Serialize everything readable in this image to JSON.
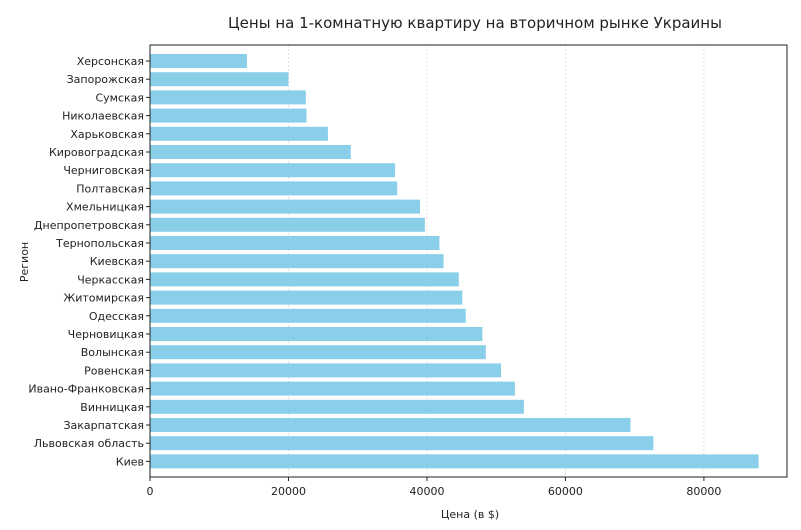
{
  "chart_data": {
    "type": "bar",
    "orientation": "horizontal",
    "title": "Цены на 1-комнатную квартиру на вторичном рынке Украины",
    "xlabel": "Цена (в $)",
    "ylabel": "Регион",
    "xlim": [
      0,
      92000
    ],
    "xticks": [
      0,
      20000,
      40000,
      60000,
      80000
    ],
    "grid": true,
    "bar_color": "#89cfea",
    "categories": [
      "Херсонская",
      "Запорожская",
      "Сумская",
      "Николаевская",
      "Харьковская",
      "Кировоградская",
      "Черниговская",
      "Полтавская",
      "Хмельницкая",
      "Днепропетровская",
      "Тернопольская",
      "Киевская",
      "Черкасская",
      "Житомирская",
      "Одесская",
      "Черновицкая",
      "Волынская",
      "Ровенская",
      "Ивано-Франковская",
      "Винницкая",
      "Закарпатская",
      "Львовская область",
      "Киев"
    ],
    "values": [
      14000,
      20000,
      22500,
      22600,
      25700,
      29000,
      35400,
      35700,
      39000,
      39700,
      41800,
      42400,
      44600,
      45100,
      45600,
      48000,
      48500,
      50700,
      52700,
      54000,
      69400,
      72700,
      87900
    ]
  }
}
